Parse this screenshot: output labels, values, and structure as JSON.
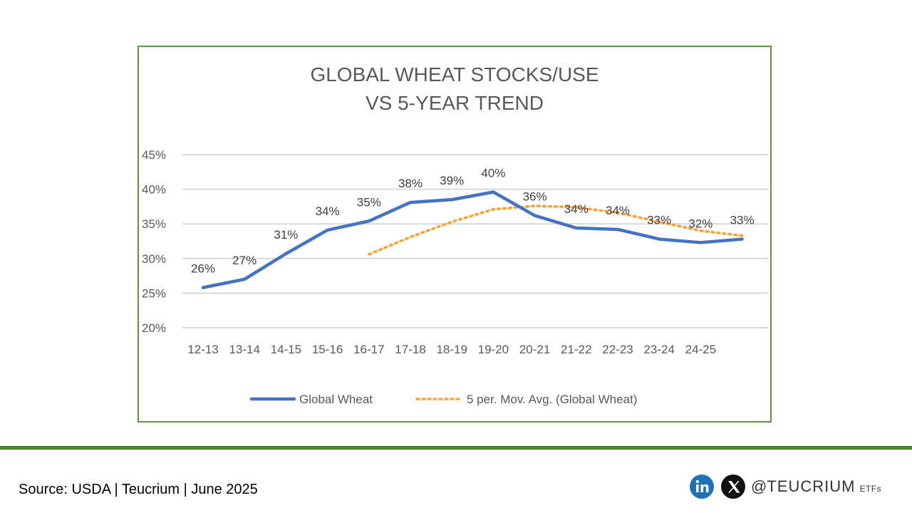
{
  "chart_data": {
    "type": "line",
    "title_lines": [
      "GLOBAL WHEAT STOCKS/USE",
      "VS 5-YEAR TREND"
    ],
    "categories": [
      "12-13",
      "13-14",
      "14-15",
      "15-16",
      "16-17",
      "17-18",
      "18-19",
      "19-20",
      "20-21",
      "21-22",
      "22-23",
      "23-24",
      "24-25",
      ""
    ],
    "yticks": [
      "20%",
      "25%",
      "30%",
      "35%",
      "40%",
      "45%"
    ],
    "ylim": [
      20,
      45
    ],
    "grid": true,
    "legend_position": "bottom",
    "series": [
      {
        "name": "Global Wheat",
        "color": "#4472c4",
        "style": "solid",
        "values": [
          25.8,
          27.0,
          30.7,
          34.1,
          35.4,
          38.1,
          38.5,
          39.6,
          36.2,
          34.4,
          34.2,
          32.8,
          32.3,
          32.8
        ],
        "labels": [
          "26%",
          "27%",
          "31%",
          "34%",
          "35%",
          "38%",
          "39%",
          "40%",
          "36%",
          "34%",
          "34%",
          "33%",
          "32%",
          "33%"
        ]
      },
      {
        "name": "5 per. Mov. Avg. (Global Wheat)",
        "color": "#ffa032",
        "style": "dotted",
        "values": [
          null,
          null,
          null,
          null,
          30.6,
          33.1,
          35.3,
          37.1,
          37.6,
          37.4,
          36.6,
          35.3,
          34.0,
          33.3
        ]
      }
    ]
  },
  "footer": {
    "source": "Source: USDA | Teucrium | June 2025",
    "handle_at": "@",
    "brand": "TEUCRIUM",
    "brand_suffix": "ETFs",
    "linkedin_icon": "linkedin-icon",
    "x_icon": "x-icon",
    "linkedin_color": "#1d73b5",
    "x_color": "#111111",
    "rule_color": "#4f8f26"
  }
}
